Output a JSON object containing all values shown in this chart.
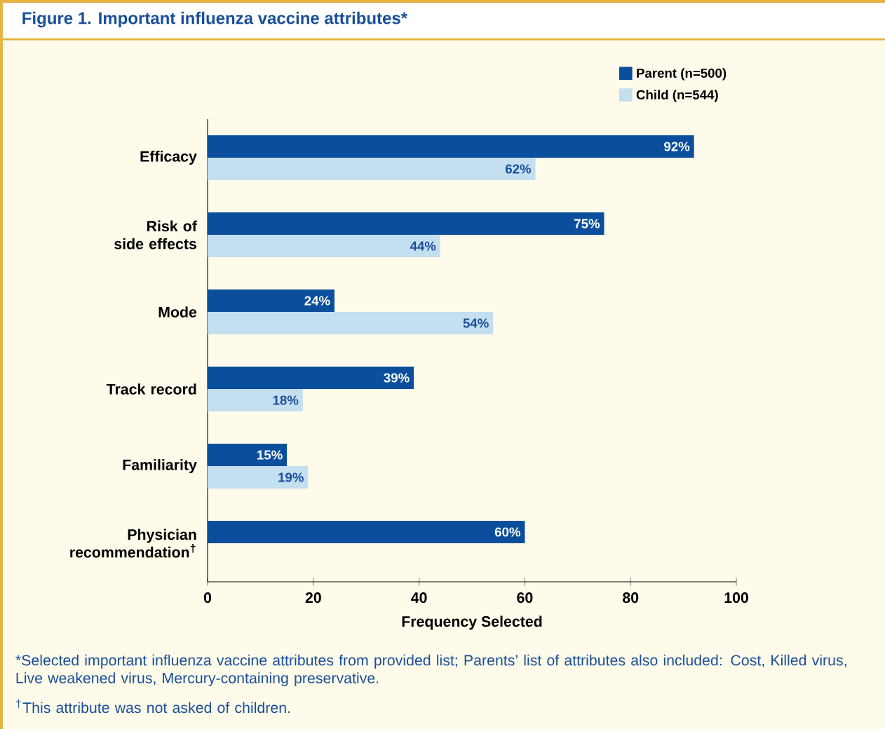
{
  "chart_data": {
    "type": "bar",
    "orientation": "horizontal",
    "title": "Figure 1. Important influenza vaccine attributes*",
    "xlabel": "Frequency Selected",
    "categories": [
      "Efficacy",
      "Risk of side effects",
      "Mode",
      "Track record",
      "Familiarity",
      "Physician recommendation$^{†}$"
    ],
    "series": [
      {
        "name": "Parent (n=500)",
        "color": "#0b4f9c",
        "values": [
          92,
          75,
          24,
          39,
          15,
          60
        ],
        "value_labels": [
          "92%",
          "75%",
          "24%",
          "39%",
          "15%",
          "60%"
        ]
      },
      {
        "name": "Child (n=544)",
        "color": "#c4dff0",
        "values": [
          62,
          44,
          54,
          18,
          19,
          null
        ],
        "value_labels": [
          "62%",
          "44%",
          "54%",
          "18%",
          "19%",
          null
        ]
      }
    ],
    "xlim": [
      0,
      100
    ],
    "xticks": [
      0,
      20,
      40,
      60,
      80,
      100
    ],
    "legend": "top right",
    "annotations": [
      "*Selected important influenza vaccine attributes from provided list; Parents’ list of attributes also included: Cost, Killed virus, Live weakened virus, Mercury-containing preservative.",
      "$^{†}$This attribute was not asked of children."
    ]
  }
}
